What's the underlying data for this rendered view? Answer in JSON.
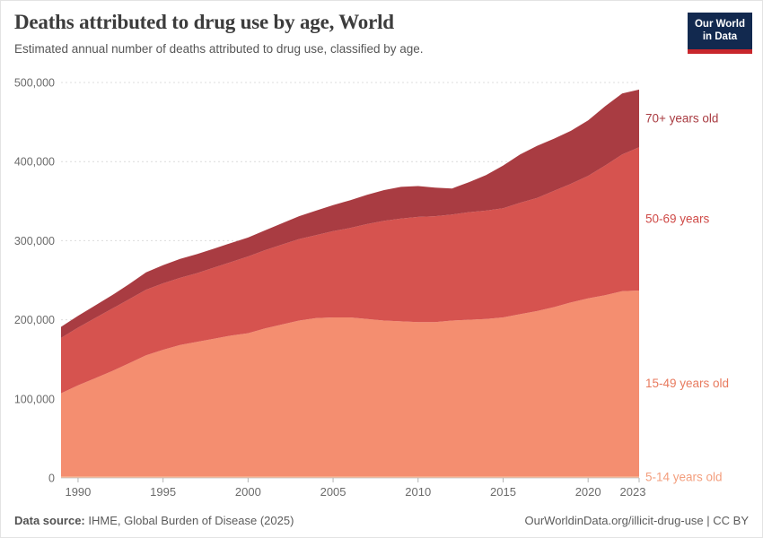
{
  "header": {
    "title": "Deaths attributed to drug use by age, World",
    "subtitle": "Estimated annual number of deaths attributed to drug use, classified by age.",
    "logo": {
      "line1": "Our World",
      "line2": "in Data"
    }
  },
  "chart_data": {
    "type": "area",
    "stacked": true,
    "title": "Deaths attributed to drug use by age, World",
    "xlabel": "",
    "ylabel": "",
    "grid": "horizontal-dashed",
    "legend_position": "right-edge-labels",
    "ylim": [
      0,
      500000
    ],
    "x": [
      1989,
      1990,
      1991,
      1992,
      1993,
      1994,
      1995,
      1996,
      1997,
      1998,
      1999,
      2000,
      2001,
      2002,
      2003,
      2004,
      2005,
      2006,
      2007,
      2008,
      2009,
      2010,
      2011,
      2012,
      2013,
      2014,
      2015,
      2016,
      2017,
      2018,
      2019,
      2020,
      2021,
      2022,
      2023
    ],
    "series": [
      {
        "name": "5-14 years old",
        "color": "#f9a77f",
        "label_color": "#f39e7d",
        "values": [
          2000,
          2000,
          2000,
          2000,
          2000,
          2000,
          2000,
          2000,
          2000,
          2000,
          2000,
          2000,
          2000,
          2000,
          2000,
          2000,
          2000,
          2000,
          2000,
          2000,
          2000,
          2000,
          2000,
          2000,
          2000,
          2000,
          2000,
          2000,
          2000,
          2000,
          2000,
          2000,
          2000,
          2000,
          2000
        ]
      },
      {
        "name": "15-49 years old",
        "color": "#f48e70",
        "label_color": "#e87a5e",
        "values": [
          105000,
          115000,
          124000,
          133000,
          143000,
          153000,
          160000,
          166000,
          170000,
          174000,
          178000,
          181000,
          187000,
          192000,
          197000,
          200000,
          201000,
          201000,
          199000,
          197000,
          196000,
          195000,
          195000,
          197000,
          198000,
          199000,
          201000,
          205000,
          209000,
          214000,
          220000,
          225000,
          229000,
          234000,
          235000
        ]
      },
      {
        "name": "50-69 years",
        "color": "#d6534f",
        "label_color": "#cf4a47",
        "values": [
          70000,
          73000,
          76000,
          79000,
          81000,
          83000,
          84000,
          85000,
          87000,
          90000,
          93000,
          97000,
          99000,
          101000,
          103000,
          105000,
          109000,
          113000,
          120000,
          126000,
          130000,
          133000,
          134000,
          134000,
          136000,
          137000,
          138000,
          141000,
          143000,
          147000,
          150000,
          155000,
          164000,
          173000,
          181000
        ]
      },
      {
        "name": "70+ years old",
        "color": "#a93c42",
        "label_color": "#a93c42",
        "values": [
          14000,
          15000,
          16000,
          17000,
          19000,
          22000,
          23000,
          24000,
          24000,
          24000,
          24000,
          24000,
          25000,
          27000,
          29000,
          31000,
          33000,
          35000,
          37000,
          39000,
          40000,
          39000,
          36000,
          33000,
          38000,
          45000,
          54000,
          61000,
          66000,
          66000,
          67000,
          70000,
          75000,
          77000,
          73000
        ]
      }
    ],
    "yticks": [
      {
        "value": 0,
        "label": "0"
      },
      {
        "value": 100000,
        "label": "100,000"
      },
      {
        "value": 200000,
        "label": "200,000"
      },
      {
        "value": 300000,
        "label": "300,000"
      },
      {
        "value": 400000,
        "label": "400,000"
      },
      {
        "value": 500000,
        "label": "500,000"
      }
    ],
    "xticks": [
      {
        "value": 1990,
        "label": "1990"
      },
      {
        "value": 1995,
        "label": "1995"
      },
      {
        "value": 2000,
        "label": "2000"
      },
      {
        "value": 2005,
        "label": "2005"
      },
      {
        "value": 2010,
        "label": "2010"
      },
      {
        "value": 2015,
        "label": "2015"
      },
      {
        "value": 2020,
        "label": "2020"
      },
      {
        "value": 2023,
        "label": "2023"
      }
    ]
  },
  "footer": {
    "source_label": "Data source:",
    "source_text": " IHME, Global Burden of Disease (2025)",
    "credit": "OurWorldinData.org/illicit-drug-use | CC BY"
  }
}
